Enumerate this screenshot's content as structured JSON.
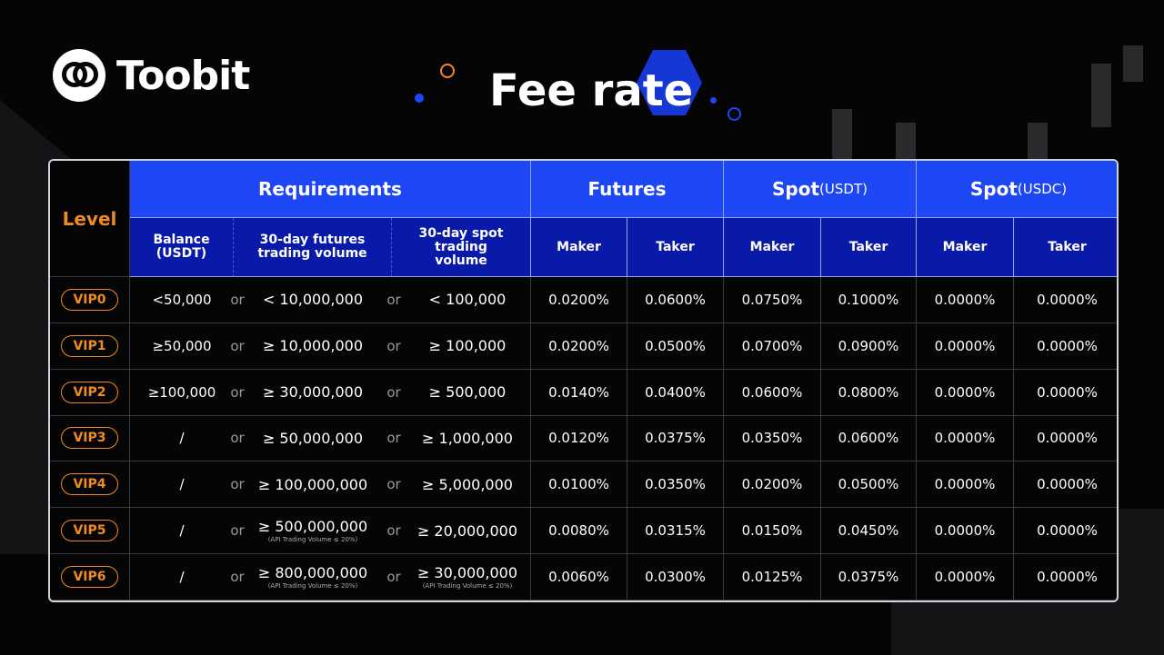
{
  "brand": "Toobit",
  "title": "Fee rate",
  "colors": {
    "accent": "#1d46f5",
    "level": "#f08a24"
  },
  "header": {
    "level": "Level",
    "requirements": "Requirements",
    "futures": "Futures",
    "spot_usdt": "Spot",
    "spot_usdt_unit": "(USDT)",
    "spot_usdc": "Spot",
    "spot_usdc_unit": "(USDC)",
    "balance": "Balance (USDT)",
    "futures_volume": "30-day futures trading volume",
    "spot_volume": "30-day spot trading volume",
    "maker": "Maker",
    "taker": "Taker"
  },
  "or_label": "or",
  "rows": [
    {
      "level": "VIP0",
      "balance": "<50,000",
      "futures_vol": "< 10,000,000",
      "futures_note": "",
      "spot_vol": "< 100,000",
      "spot_note": "",
      "fm": "0.0200%",
      "ft": "0.0600%",
      "sm": "0.0750%",
      "st": "0.1000%",
      "cm": "0.0000%",
      "ct": "0.0000%"
    },
    {
      "level": "VIP1",
      "balance": "≥50,000",
      "futures_vol": "≥ 10,000,000",
      "futures_note": "",
      "spot_vol": "≥ 100,000",
      "spot_note": "",
      "fm": "0.0200%",
      "ft": "0.0500%",
      "sm": "0.0700%",
      "st": "0.0900%",
      "cm": "0.0000%",
      "ct": "0.0000%"
    },
    {
      "level": "VIP2",
      "balance": "≥100,000",
      "futures_vol": "≥ 30,000,000",
      "futures_note": "",
      "spot_vol": "≥ 500,000",
      "spot_note": "",
      "fm": "0.0140%",
      "ft": "0.0400%",
      "sm": "0.0600%",
      "st": "0.0800%",
      "cm": "0.0000%",
      "ct": "0.0000%"
    },
    {
      "level": "VIP3",
      "balance": "/",
      "futures_vol": "≥ 50,000,000",
      "futures_note": "",
      "spot_vol": "≥ 1,000,000",
      "spot_note": "",
      "fm": "0.0120%",
      "ft": "0.0375%",
      "sm": "0.0350%",
      "st": "0.0600%",
      "cm": "0.0000%",
      "ct": "0.0000%"
    },
    {
      "level": "VIP4",
      "balance": "/",
      "futures_vol": "≥ 100,000,000",
      "futures_note": "",
      "spot_vol": "≥ 5,000,000",
      "spot_note": "",
      "fm": "0.0100%",
      "ft": "0.0350%",
      "sm": "0.0200%",
      "st": "0.0500%",
      "cm": "0.0000%",
      "ct": "0.0000%"
    },
    {
      "level": "VIP5",
      "balance": "/",
      "futures_vol": "≥ 500,000,000",
      "futures_note": "(API Trading Volume ≤ 20%)",
      "spot_vol": "≥ 20,000,000",
      "spot_note": "",
      "fm": "0.0080%",
      "ft": "0.0315%",
      "sm": "0.0150%",
      "st": "0.0450%",
      "cm": "0.0000%",
      "ct": "0.0000%"
    },
    {
      "level": "VIP6",
      "balance": "/",
      "futures_vol": "≥ 800,000,000",
      "futures_note": "(API Trading Volume ≤ 20%)",
      "spot_vol": "≥ 30,000,000",
      "spot_note": "(API Trading Volume ≤ 20%)",
      "fm": "0.0060%",
      "ft": "0.0300%",
      "sm": "0.0125%",
      "st": "0.0375%",
      "cm": "0.0000%",
      "ct": "0.0000%"
    }
  ]
}
